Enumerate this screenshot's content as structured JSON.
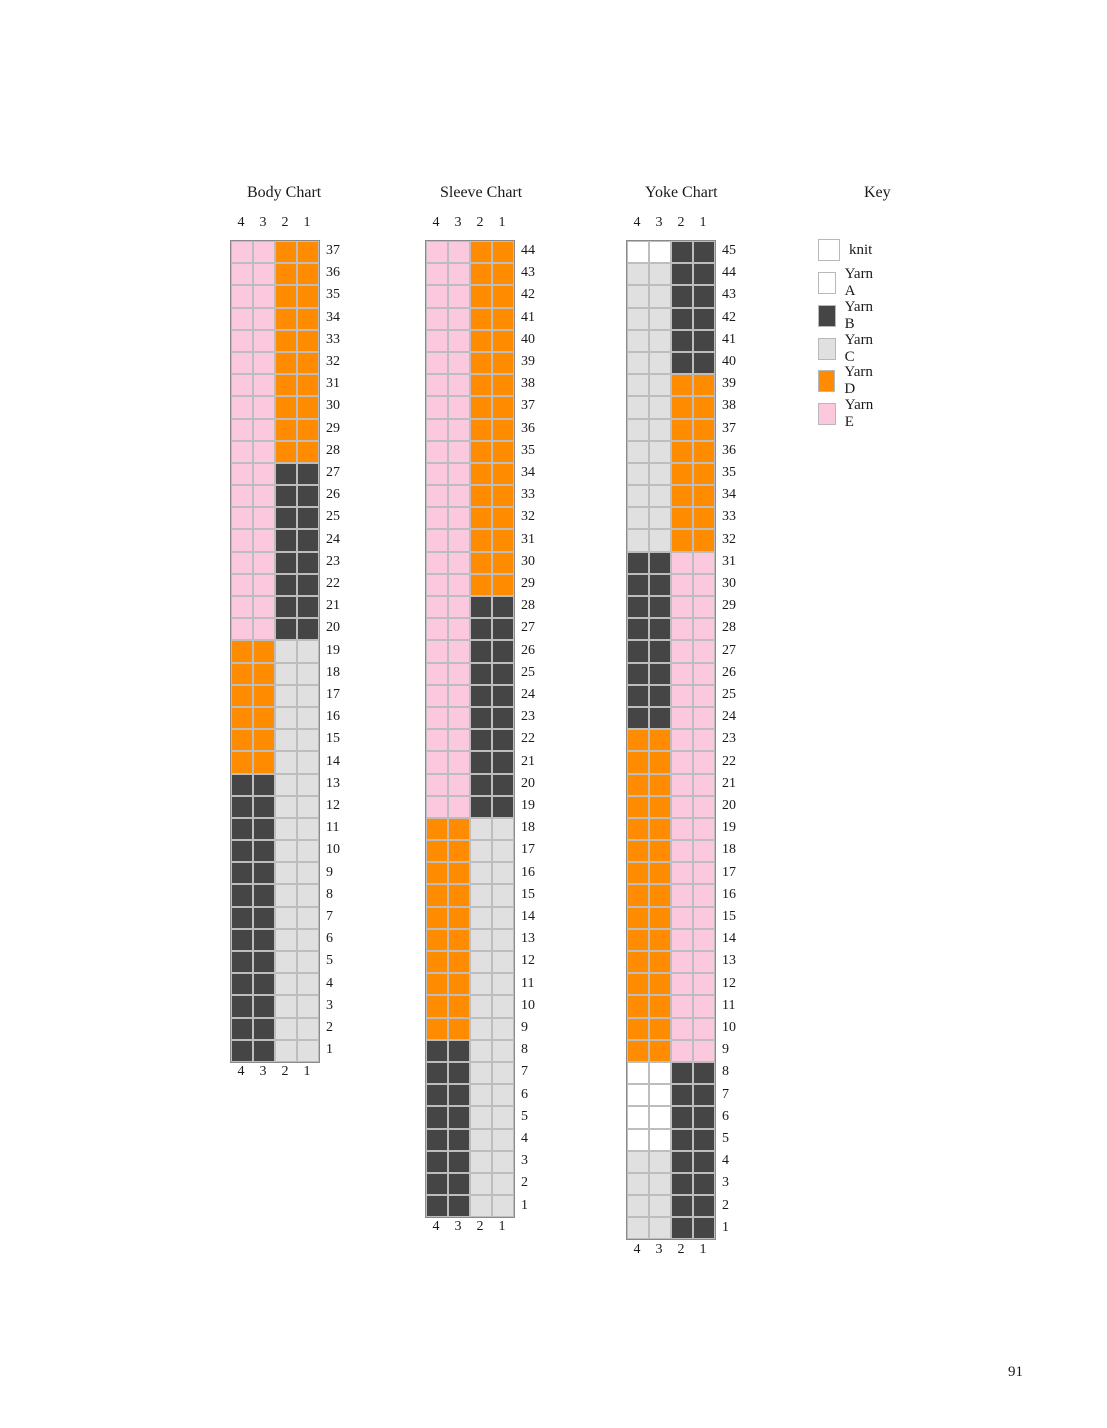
{
  "colors": {
    "knit": "#ffffff",
    "A": "#ffffff",
    "B": "#454545",
    "C": "#e0e0e0",
    "D": "#ff8c00",
    "E": "#fcc8de"
  },
  "columns": [
    "4",
    "3",
    "2",
    "1"
  ],
  "charts": [
    {
      "title": "Body Chart",
      "rows_total": 37,
      "segments": [
        {
          "from": 1,
          "to": 13,
          "left": "B",
          "right": "C"
        },
        {
          "from": 14,
          "to": 19,
          "left": "D",
          "right": "C"
        },
        {
          "from": 20,
          "to": 27,
          "left": "E",
          "right": "B"
        },
        {
          "from": 28,
          "to": 37,
          "left": "E",
          "right": "D"
        }
      ]
    },
    {
      "title": "Sleeve Chart",
      "rows_total": 44,
      "segments": [
        {
          "from": 1,
          "to": 8,
          "left": "B",
          "right": "C"
        },
        {
          "from": 9,
          "to": 18,
          "left": "D",
          "right": "C"
        },
        {
          "from": 19,
          "to": 28,
          "left": "E",
          "right": "B"
        },
        {
          "from": 29,
          "to": 44,
          "left": "E",
          "right": "D"
        }
      ]
    },
    {
      "title": "Yoke Chart",
      "rows_total": 45,
      "segments": [
        {
          "from": 1,
          "to": 4,
          "left": "C",
          "right": "B"
        },
        {
          "from": 5,
          "to": 8,
          "left": "A",
          "right": "B"
        },
        {
          "from": 9,
          "to": 23,
          "left": "D",
          "right": "E"
        },
        {
          "from": 24,
          "to": 31,
          "left": "B",
          "right": "E"
        },
        {
          "from": 32,
          "to": 39,
          "left": "C",
          "right": "D"
        },
        {
          "from": 40,
          "to": 44,
          "left": "C",
          "right": "B"
        },
        {
          "from": 45,
          "to": 45,
          "left": "A",
          "right": "B"
        }
      ]
    }
  ],
  "key": {
    "title": "Key",
    "items": [
      {
        "label": "knit",
        "color_key": "knit"
      },
      {
        "label": "Yarn A",
        "color_key": "A"
      },
      {
        "label": "Yarn B",
        "color_key": "B"
      },
      {
        "label": "Yarn C",
        "color_key": "C"
      },
      {
        "label": "Yarn D",
        "color_key": "D"
      },
      {
        "label": "Yarn E",
        "color_key": "E"
      }
    ]
  },
  "page_number": "91"
}
